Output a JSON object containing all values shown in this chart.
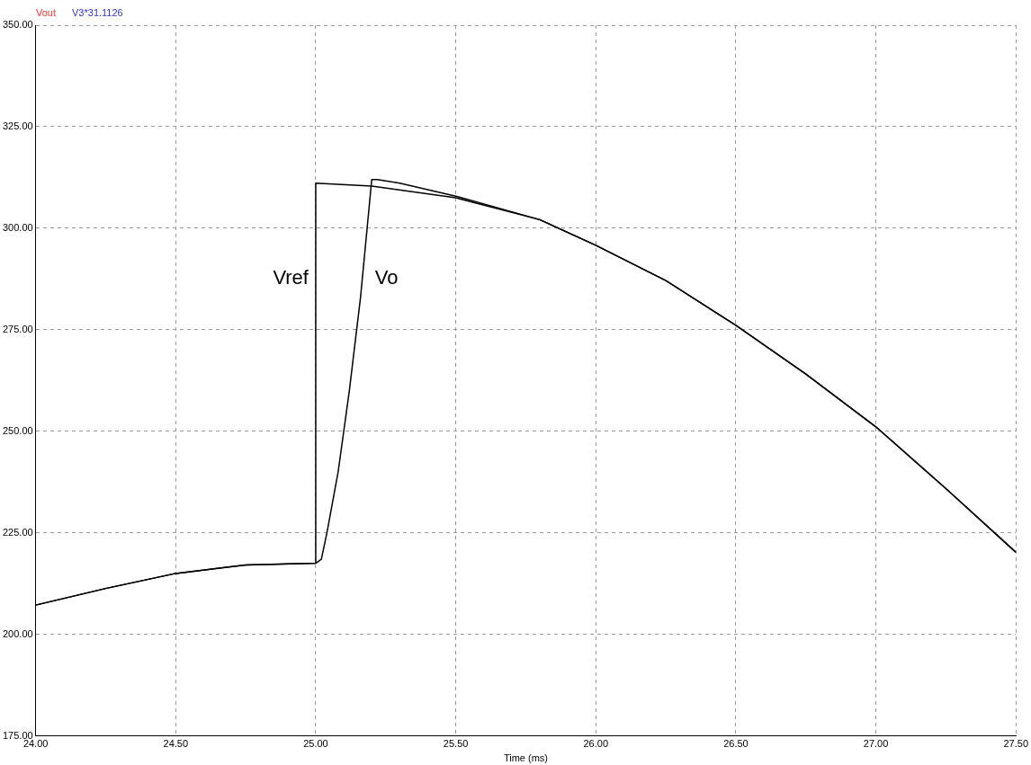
{
  "chart_data": {
    "type": "line",
    "xlabel": "Time (ms)",
    "xlim": [
      24,
      27.5
    ],
    "xticks": [
      {
        "value": 24,
        "label": "24.00"
      },
      {
        "value": 24.5,
        "label": "24.50"
      },
      {
        "value": 25,
        "label": "25.00"
      },
      {
        "value": 25.5,
        "label": "25.50"
      },
      {
        "value": 26,
        "label": "26.00"
      },
      {
        "value": 26.5,
        "label": "26.50"
      },
      {
        "value": 27,
        "label": "27.00"
      },
      {
        "value": 27.5,
        "label": "27.50"
      }
    ],
    "ylim": [
      175,
      350
    ],
    "yticks": [
      {
        "value": 175,
        "label": "175.00"
      },
      {
        "value": 200,
        "label": "200.00"
      },
      {
        "value": 225,
        "label": "225.00"
      },
      {
        "value": 250,
        "label": "250.00"
      },
      {
        "value": 275,
        "label": "275.00"
      },
      {
        "value": 300,
        "label": "300.00"
      },
      {
        "value": 325,
        "label": "325.00"
      },
      {
        "value": 350,
        "label": "350.00"
      }
    ],
    "grid": true,
    "line_style": "solid",
    "marker": "none",
    "series": [
      {
        "name": "Vref",
        "color": "#000000",
        "x": [
          24,
          24.25,
          24.5,
          24.75,
          25,
          25,
          25.2,
          25.5,
          25.8,
          26,
          26.25,
          26.5,
          26.75,
          27,
          27.25,
          27.5
        ],
        "values": [
          207.2,
          211.3,
          215,
          217.1,
          217.5,
          311.1,
          310.4,
          307.5,
          302.1,
          295.8,
          287.1,
          276.1,
          264.1,
          251.1,
          235.9,
          220.2
        ]
      },
      {
        "name": "Vo",
        "color": "#000000",
        "x": [
          24,
          24.25,
          24.5,
          24.75,
          25,
          25.02,
          25.04,
          25.08,
          25.12,
          25.16,
          25.2,
          25.22,
          25.3,
          25.5,
          25.8,
          26,
          26.25,
          26.5,
          26.75,
          27,
          27.25,
          27.5
        ],
        "values": [
          207.2,
          211.3,
          215,
          217.1,
          217.5,
          218.5,
          225,
          240,
          260,
          283,
          312,
          312,
          311.1,
          307.9,
          302.1,
          295.8,
          287.1,
          276.1,
          264.1,
          251.1,
          235.9,
          220.2
        ]
      }
    ],
    "annotations": [
      "Vout",
      "V3*31.1126"
    ]
  }
}
